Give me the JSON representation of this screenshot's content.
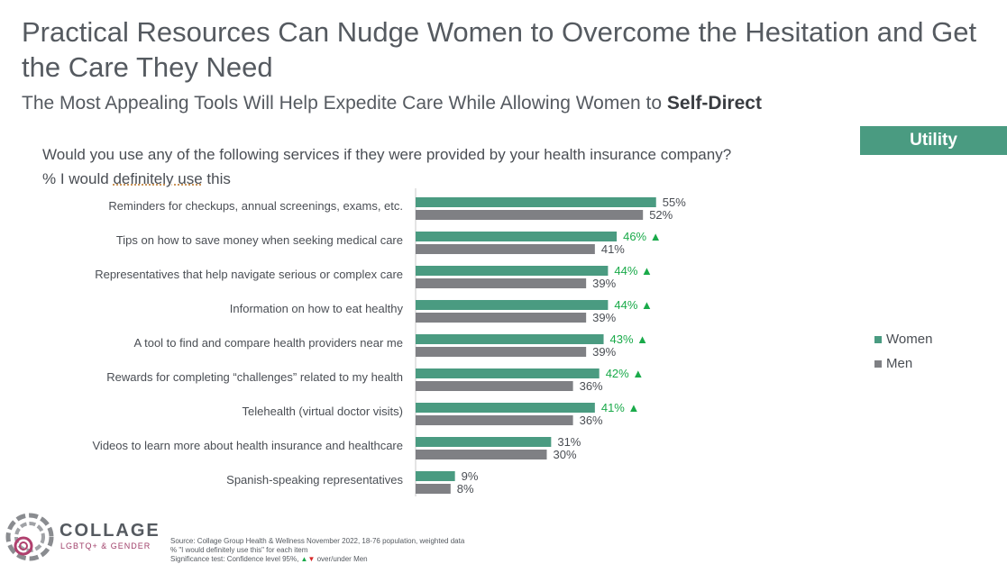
{
  "header": {
    "title": "Practical Resources Can Nudge Women to Overcome the Hesitation and Get the Care They Need",
    "subtitle_main": "The Most Appealing Tools Will Help Expedite Care While Allowing Women to ",
    "subtitle_bold": "Self-Direct",
    "tag": "Utility"
  },
  "question": {
    "line1": "Would you use any of the following services if they were provided by your health insurance company?",
    "line2_prefix": "% I would ",
    "line2_underlined": "definitely use",
    "line2_suffix": " this"
  },
  "legend": {
    "women": "Women",
    "men": "Men"
  },
  "colors": {
    "women": "#4a9b81",
    "men": "#7f8084",
    "sig": "#1aaa4a",
    "text": "#4a4e54"
  },
  "brand": {
    "name": "COLLAGE",
    "sub": "LGBTQ+ & GENDER"
  },
  "source": {
    "line1": "Source: Collage Group Health & Wellness November 2022, 18-76 population, weighted data",
    "line2": "% \"I would definitely use this\" for each item",
    "line3_prefix": "Significance test: Confidence level 95%, ",
    "line3_suffix": " over/under Men"
  },
  "chart_data": {
    "type": "bar",
    "orientation": "horizontal",
    "categories": [
      "Reminders for checkups, annual screenings, exams, etc.",
      "Tips on how to save money when seeking medical care",
      "Representatives that help navigate serious or complex care",
      "Information on how to eat healthy",
      "A tool to find and compare health providers near me",
      "Rewards for completing “challenges” related to my health",
      "Telehealth (virtual doctor visits)",
      "Videos to learn more about health insurance and healthcare",
      "Spanish-speaking representatives"
    ],
    "series": [
      {
        "name": "Women",
        "values": [
          55,
          46,
          44,
          44,
          43,
          42,
          41,
          31,
          9
        ],
        "labels": [
          "55%",
          "46%",
          "44%",
          "44%",
          "43%",
          "42%",
          "41%",
          "31%",
          "9%"
        ],
        "significant_higher": [
          false,
          true,
          true,
          true,
          true,
          true,
          true,
          false,
          false
        ]
      },
      {
        "name": "Men",
        "values": [
          52,
          41,
          39,
          39,
          39,
          36,
          36,
          30,
          8
        ],
        "labels": [
          "52%",
          "41%",
          "39%",
          "39%",
          "39%",
          "36%",
          "36%",
          "30%",
          "8%"
        ]
      }
    ],
    "xlim": [
      0,
      100
    ],
    "legend_position": "right",
    "grid": false
  }
}
